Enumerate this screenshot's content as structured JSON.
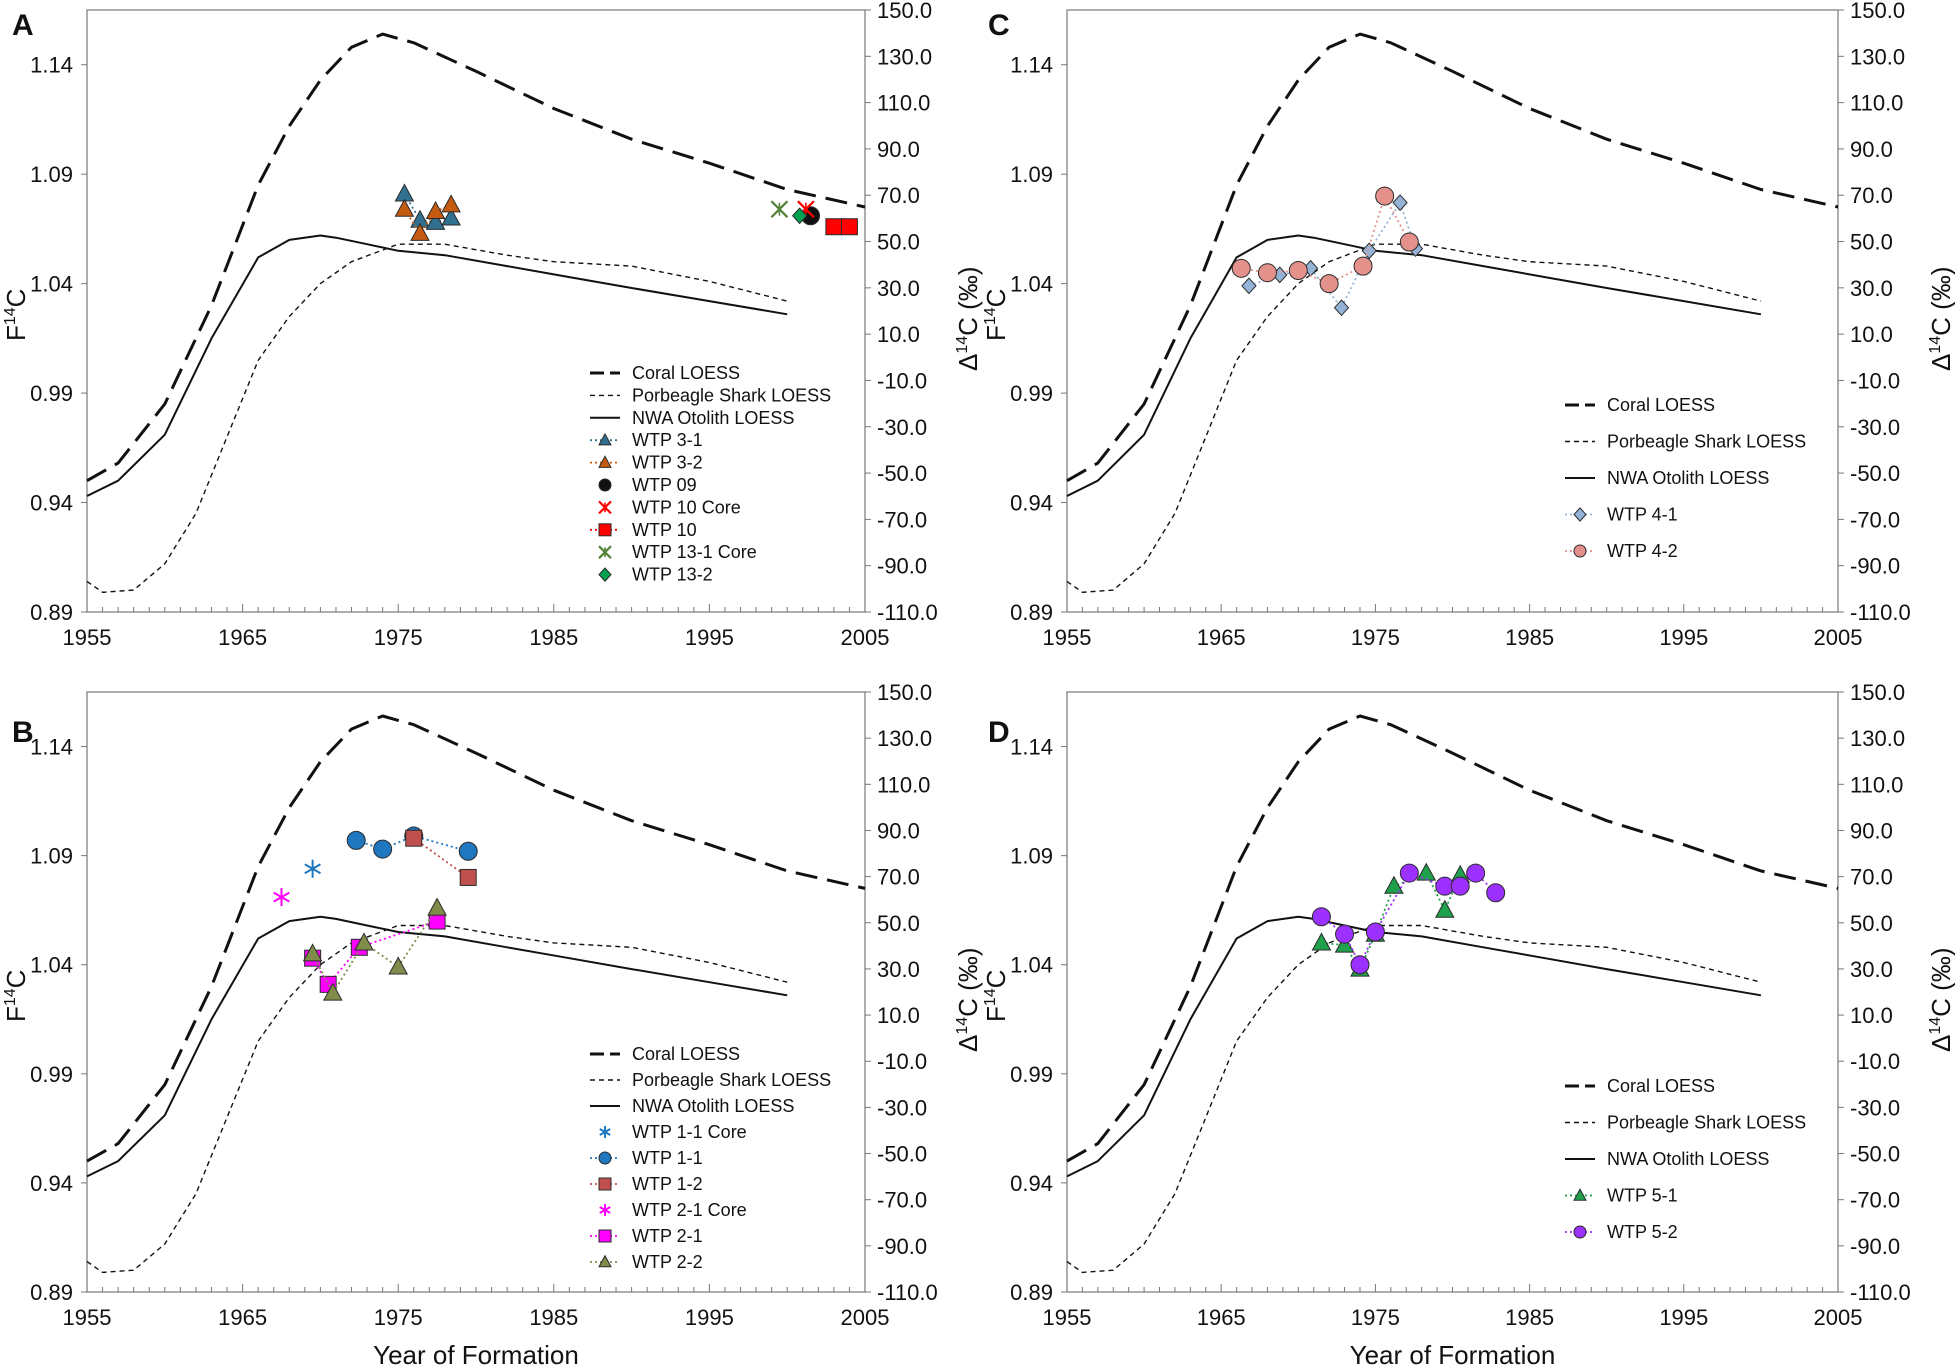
{
  "figure": {
    "x_axis_label": "Year of Formation",
    "left_axis_label": "F",
    "left_axis_sup": "14",
    "left_axis_suffix": "C",
    "right_axis_label_prefix": "Δ",
    "right_axis_sup": "14",
    "right_axis_suffix": "C (‰)"
  },
  "colors": {
    "teal": "#31708e",
    "orange": "#c55a11",
    "black": "#111111",
    "red": "#ff0000",
    "green_x": "#548235",
    "green": "#00a050",
    "blue": "#1f77c0",
    "salmon_fill": "#c0504d",
    "magenta": "#ff00ff",
    "olive": "#7f8c4a",
    "lightblue": "#95b3d7",
    "rose": "#e3918a",
    "purple": "#9b30ff",
    "green_tri": "#1fa04a"
  },
  "chart_data": [
    {
      "panel": "A",
      "type": "line",
      "x_range": [
        1955,
        2005
      ],
      "y_left_range": [
        0.89,
        1.165
      ],
      "y_right_range": [
        -110,
        150
      ],
      "x_ticks": [
        "1955",
        "1965",
        "1975",
        "1985",
        "1995",
        "2005"
      ],
      "y_left_ticks": [
        "0.89",
        "0.94",
        "0.99",
        "1.04",
        "1.09",
        "1.14"
      ],
      "y_right_ticks": [
        "-110.0",
        "-90.0",
        "-70.0",
        "-50.0",
        "-30.0",
        "-10.0",
        "10.0",
        "30.0",
        "50.0",
        "70.0",
        "90.0",
        "110.0",
        "130.0",
        "150.0"
      ],
      "reference_lines": {
        "coral": {
          "name": "Coral LOESS",
          "x": [
            1955,
            1957,
            1960,
            1963,
            1966,
            1968,
            1970,
            1972,
            1974,
            1976,
            1980,
            1985,
            1990,
            1995,
            2000,
            2005
          ],
          "y": [
            0.95,
            0.958,
            0.985,
            1.03,
            1.085,
            1.112,
            1.133,
            1.148,
            1.154,
            1.15,
            1.137,
            1.12,
            1.106,
            1.095,
            1.083,
            1.075
          ]
        },
        "shark": {
          "name": "Porbeagle Shark LOESS",
          "x": [
            1955,
            1956,
            1958,
            1960,
            1962,
            1964,
            1966,
            1968,
            1970,
            1972,
            1975,
            1978,
            1982,
            1985,
            1990,
            1995,
            2000
          ],
          "y": [
            0.904,
            0.899,
            0.9,
            0.912,
            0.935,
            0.97,
            1.005,
            1.025,
            1.04,
            1.05,
            1.058,
            1.058,
            1.053,
            1.05,
            1.048,
            1.041,
            1.032
          ]
        },
        "otolith": {
          "name": "NWA Otolith LOESS",
          "x": [
            1955,
            1957,
            1960,
            1963,
            1966,
            1968,
            1970,
            1971,
            1973,
            1975,
            1978,
            1982,
            1986,
            1990,
            1995,
            2000
          ],
          "y": [
            0.943,
            0.95,
            0.971,
            1.015,
            1.052,
            1.06,
            1.062,
            1.061,
            1.058,
            1.055,
            1.053,
            1.048,
            1.043,
            1.038,
            1.032,
            1.026
          ]
        }
      },
      "series": [
        {
          "name": "WTP 3-1",
          "marker": "triangle",
          "color": "#31708e",
          "x": [
            1975.4,
            1976.4,
            1977.4,
            1978.4
          ],
          "y": [
            1.081,
            1.069,
            1.068,
            1.07
          ]
        },
        {
          "name": "WTP 3-2",
          "marker": "triangle",
          "color": "#c55a11",
          "x": [
            1975.4,
            1976.4,
            1977.4,
            1978.4
          ],
          "y": [
            1.074,
            1.063,
            1.073,
            1.076
          ]
        },
        {
          "name": "WTP 09",
          "marker": "circle",
          "color": "#111111",
          "x": [
            2001.5
          ],
          "y": [
            1.071
          ]
        },
        {
          "name": "WTP 10 Core",
          "marker": "xstar",
          "color": "#ff0000",
          "x": [
            2001.2
          ],
          "y": [
            1.074
          ]
        },
        {
          "name": "WTP 10",
          "marker": "square",
          "color": "#ff0000",
          "x": [
            2003.0,
            2004.0
          ],
          "y": [
            1.066,
            1.066
          ]
        },
        {
          "name": "WTP 13-1 Core",
          "marker": "xstar",
          "color": "#548235",
          "x": [
            1999.5
          ],
          "y": [
            1.074
          ]
        },
        {
          "name": "WTP 13-2",
          "marker": "diamond",
          "color": "#00a050",
          "x": [
            2000.8
          ],
          "y": [
            1.071
          ]
        }
      ]
    },
    {
      "panel": "C",
      "type": "line",
      "x_range": [
        1955,
        2005
      ],
      "y_left_range": [
        0.89,
        1.165
      ],
      "y_right_range": [
        -110,
        150
      ],
      "x_ticks": [
        "1955",
        "1965",
        "1975",
        "1985",
        "1995",
        "2005"
      ],
      "y_left_ticks": [
        "0.89",
        "0.94",
        "0.99",
        "1.04",
        "1.09",
        "1.14"
      ],
      "y_right_ticks": [
        "-110.0",
        "-90.0",
        "-70.0",
        "-50.0",
        "-30.0",
        "-10.0",
        "10.0",
        "30.0",
        "50.0",
        "70.0",
        "90.0",
        "110.0",
        "130.0",
        "150.0"
      ],
      "series": [
        {
          "name": "WTP 4-1",
          "marker": "diamond",
          "color": "#95b3d7",
          "x": [
            1966.8,
            1968.8,
            1970.8,
            1972.8,
            1974.6,
            1976.6,
            1977.6
          ],
          "y": [
            1.039,
            1.044,
            1.047,
            1.029,
            1.055,
            1.077,
            1.056
          ]
        },
        {
          "name": "WTP 4-2",
          "marker": "circle",
          "color": "#e3918a",
          "x": [
            1966.3,
            1968.0,
            1970.0,
            1972.0,
            1974.2,
            1975.6,
            1977.2
          ],
          "y": [
            1.047,
            1.045,
            1.046,
            1.04,
            1.048,
            1.08,
            1.059
          ]
        }
      ]
    },
    {
      "panel": "B",
      "type": "line",
      "x_range": [
        1955,
        2005
      ],
      "y_left_range": [
        0.89,
        1.165
      ],
      "y_right_range": [
        -110,
        150
      ],
      "x_ticks": [
        "1955",
        "1965",
        "1975",
        "1985",
        "1995",
        "2005"
      ],
      "y_left_ticks": [
        "0.89",
        "0.94",
        "0.99",
        "1.04",
        "1.09",
        "1.14"
      ],
      "y_right_ticks": [
        "-110.0",
        "-90.0",
        "-70.0",
        "-50.0",
        "-30.0",
        "-10.0",
        "10.0",
        "30.0",
        "50.0",
        "70.0",
        "90.0",
        "110.0",
        "130.0",
        "150.0"
      ],
      "series": [
        {
          "name": "WTP 1-1 Core",
          "marker": "asterisk",
          "color": "#1f77c0",
          "x": [
            1969.5
          ],
          "y": [
            1.084
          ]
        },
        {
          "name": "WTP 1-1",
          "marker": "circle",
          "color": "#1f77c0",
          "x": [
            1972.3,
            1974.0,
            1976.0,
            1979.5
          ],
          "y": [
            1.097,
            1.093,
            1.099,
            1.092
          ]
        },
        {
          "name": "WTP 1-2",
          "marker": "square",
          "color": "#c0504d",
          "x": [
            1976.0,
            1979.5
          ],
          "y": [
            1.098,
            1.08
          ]
        },
        {
          "name": "WTP 2-1 Core",
          "marker": "asterisk",
          "color": "#ff00ff",
          "x": [
            1967.5
          ],
          "y": [
            1.071
          ]
        },
        {
          "name": "WTP 2-1",
          "marker": "square",
          "color": "#ff00ff",
          "x": [
            1969.5,
            1970.5,
            1972.5,
            1977.5
          ],
          "y": [
            1.043,
            1.031,
            1.048,
            1.06
          ]
        },
        {
          "name": "WTP 2-2",
          "marker": "triangle",
          "color": "#7f8c4a",
          "x": [
            1969.5,
            1970.8,
            1972.8,
            1975.0,
            1977.5
          ],
          "y": [
            1.045,
            1.027,
            1.05,
            1.039,
            1.066
          ]
        }
      ]
    },
    {
      "panel": "D",
      "type": "line",
      "x_range": [
        1955,
        2005
      ],
      "y_left_range": [
        0.89,
        1.165
      ],
      "y_right_range": [
        -110,
        150
      ],
      "x_ticks": [
        "1955",
        "1965",
        "1975",
        "1985",
        "1995",
        "2005"
      ],
      "y_left_ticks": [
        "0.89",
        "0.94",
        "0.99",
        "1.04",
        "1.09",
        "1.14"
      ],
      "y_right_ticks": [
        "-110.0",
        "-90.0",
        "-70.0",
        "-50.0",
        "-30.0",
        "-10.0",
        "10.0",
        "30.0",
        "50.0",
        "70.0",
        "90.0",
        "110.0",
        "130.0",
        "150.0"
      ],
      "series": [
        {
          "name": "WTP 5-1",
          "marker": "triangle",
          "color": "#1fa04a",
          "x": [
            1971.5,
            1973.0,
            1974.0,
            1975.0,
            1976.2,
            1978.3,
            1979.5,
            1980.5
          ],
          "y": [
            1.05,
            1.049,
            1.038,
            1.054,
            1.076,
            1.082,
            1.065,
            1.081
          ]
        },
        {
          "name": "WTP 5-2",
          "marker": "circle",
          "color": "#9b30ff",
          "x": [
            1971.5,
            1973.0,
            1974.0,
            1975.0,
            1977.2,
            1979.5,
            1980.5,
            1981.5,
            1982.8
          ],
          "y": [
            1.062,
            1.054,
            1.04,
            1.055,
            1.082,
            1.076,
            1.076,
            1.082,
            1.073
          ]
        }
      ]
    }
  ]
}
